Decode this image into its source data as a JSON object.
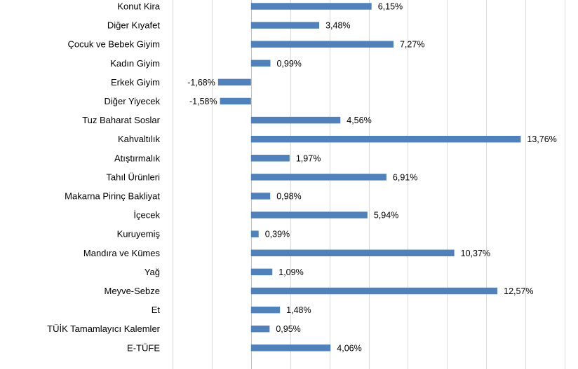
{
  "chart_data": {
    "type": "bar",
    "orientation": "horizontal",
    "categories": [
      "Konut Kira",
      "Diğer Kıyafet",
      "Çocuk ve Bebek Giyim",
      "Kadın Giyim",
      "Erkek Giyim",
      "Diğer Yiyecek",
      "Tuz Baharat Soslar",
      "Kahvaltılık",
      "Atıştırmalık",
      "Tahıl Ürünleri",
      "Makarna Pirinç Bakliyat",
      "İçecek",
      "Kuruyemiş",
      "Mandıra ve Kümes",
      "Yağ",
      "Meyve-Sebze",
      "Et",
      "TÜİK Tamamlayıcı Kalemler",
      "E-TÜFE"
    ],
    "values": [
      6.15,
      3.48,
      7.27,
      0.99,
      -1.68,
      -1.58,
      4.56,
      13.76,
      1.97,
      6.91,
      0.98,
      5.94,
      0.39,
      10.37,
      1.09,
      12.57,
      1.48,
      0.95,
      4.06
    ],
    "value_labels": [
      "6,15%",
      "3,48%",
      "7,27%",
      "0,99%",
      "-1,68%",
      "-1,58%",
      "4,56%",
      "13,76%",
      "1,97%",
      "6,91%",
      "0,98%",
      "5,94%",
      "0,39%",
      "10,37%",
      "1,09%",
      "12,57%",
      "1,48%",
      "0,95%",
      "4,06%"
    ],
    "xlim": [
      -4,
      16
    ],
    "grid_step": 2,
    "grid": true,
    "bar_color": "#4f81bd",
    "title": "",
    "xlabel": "",
    "ylabel": ""
  }
}
